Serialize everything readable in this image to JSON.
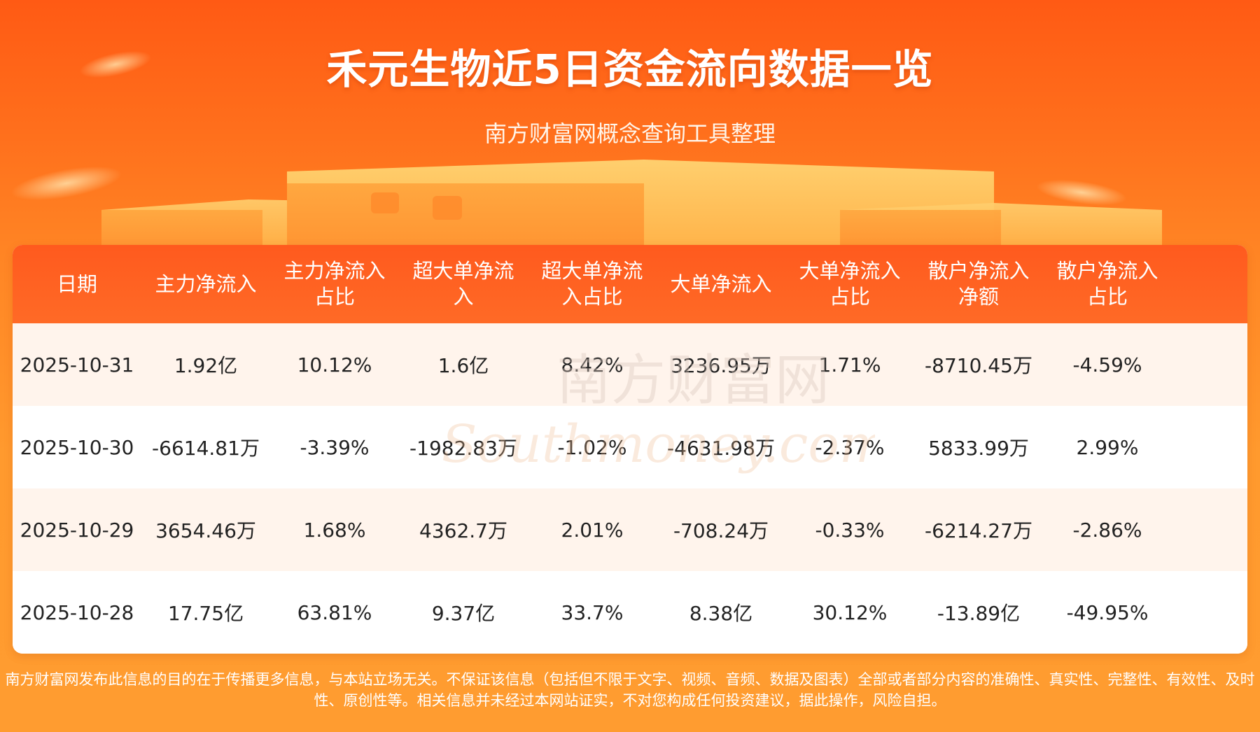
{
  "header": {
    "title": "禾元生物近5日资金流向数据一览",
    "subtitle": "南方财富网概念查询工具整理"
  },
  "watermark": {
    "cn": "南方财富网",
    "en": "Southmoney.com"
  },
  "table": {
    "headers": [
      "日期",
      "主力净流入",
      "主力净流入\n占比",
      "超大单净流\n入",
      "超大单净流\n入占比",
      "大单净流入",
      "大单净流入\n占比",
      "散户净流入\n净额",
      "散户净流入\n占比"
    ],
    "rows": [
      [
        "2025-10-31",
        "1.92亿",
        "10.12%",
        "1.6亿",
        "8.42%",
        "3236.95万",
        "1.71%",
        "-8710.45万",
        "-4.59%"
      ],
      [
        "2025-10-30",
        "-6614.81万",
        "-3.39%",
        "-1982.83万",
        "-1.02%",
        "-4631.98万",
        "-2.37%",
        "5833.99万",
        "2.99%"
      ],
      [
        "2025-10-29",
        "3654.46万",
        "1.68%",
        "4362.7万",
        "2.01%",
        "-708.24万",
        "-0.33%",
        "-6214.27万",
        "-2.86%"
      ],
      [
        "2025-10-28",
        "17.75亿",
        "63.81%",
        "9.37亿",
        "33.7%",
        "8.38亿",
        "30.12%",
        "-13.89亿",
        "-49.95%"
      ]
    ]
  },
  "footer": {
    "disclaimer": "南方财富网发布此信息的目的在于传播更多信息，与本站立场无关。不保证该信息（包括但不限于文字、视频、音频、数据及图表）全部或者部分内容的准确性、真实性、完整性、有效性、及时性、原创性等。相关信息并未经过本网站证实，不对您构成任何投资建议，据此操作，风险自担。"
  },
  "colors": {
    "header_bg": "#ff5a1e",
    "accent": "#ff7a22",
    "row_alt": "#fff4ec"
  }
}
